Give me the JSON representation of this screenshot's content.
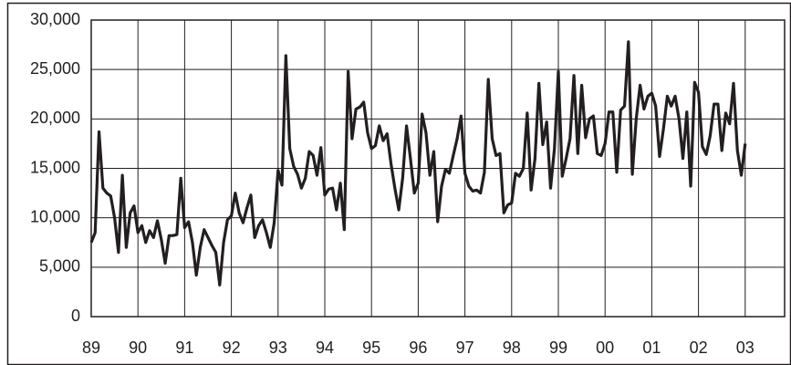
{
  "chart_data": {
    "type": "line",
    "categories": [
      "89",
      null,
      null,
      null,
      null,
      null,
      null,
      null,
      null,
      null,
      null,
      null,
      "90",
      null,
      null,
      null,
      null,
      null,
      null,
      null,
      null,
      null,
      null,
      null,
      "91",
      null,
      null,
      null,
      null,
      null,
      null,
      null,
      null,
      null,
      null,
      null,
      "92",
      null,
      null,
      null,
      null,
      null,
      null,
      null,
      null,
      null,
      null,
      null,
      "93",
      null,
      null,
      null,
      null,
      null,
      null,
      null,
      null,
      null,
      null,
      null,
      "94",
      null,
      null,
      null,
      null,
      null,
      null,
      null,
      null,
      null,
      null,
      null,
      "95",
      null,
      null,
      null,
      null,
      null,
      null,
      null,
      null,
      null,
      null,
      null,
      "96",
      null,
      null,
      null,
      null,
      null,
      null,
      null,
      null,
      null,
      null,
      null,
      "97",
      null,
      null,
      null,
      null,
      null,
      null,
      null,
      null,
      null,
      null,
      null,
      "98",
      null,
      null,
      null,
      null,
      null,
      null,
      null,
      null,
      null,
      null,
      null,
      "99",
      null,
      null,
      null,
      null,
      null,
      null,
      null,
      null,
      null,
      null,
      null,
      "00",
      null,
      null,
      null,
      null,
      null,
      null,
      null,
      null,
      null,
      null,
      null,
      "01",
      null,
      null,
      null,
      null,
      null,
      null,
      null,
      null,
      null,
      null,
      null,
      "02",
      null,
      null,
      null,
      null,
      null,
      null,
      null,
      null,
      null,
      null,
      null,
      "03"
    ],
    "values": [
      7500,
      8500,
      18700,
      13000,
      12500,
      12200,
      10000,
      6500,
      14300,
      7000,
      10500,
      11200,
      8500,
      9200,
      7500,
      8700,
      8000,
      9700,
      7800,
      5400,
      8200,
      8200,
      8300,
      14000,
      9000,
      9600,
      7500,
      4200,
      7000,
      8800,
      8000,
      7200,
      6500,
      3200,
      7500,
      9800,
      10200,
      12500,
      10500,
      9500,
      11000,
      12300,
      8000,
      9200,
      9800,
      8500,
      7000,
      9500,
      14800,
      13300,
      26400,
      17000,
      15200,
      14400,
      13000,
      14000,
      16700,
      16300,
      14300,
      17100,
      12300,
      12900,
      13000,
      10800,
      13500,
      8800,
      24800,
      18000,
      21000,
      21200,
      21700,
      18600,
      17000,
      17300,
      19300,
      17800,
      18500,
      15500,
      13000,
      10800,
      14000,
      19300,
      16000,
      12500,
      13500,
      20500,
      18600,
      14300,
      16700,
      9600,
      13200,
      14900,
      14500,
      16300,
      18000,
      20300,
      14500,
      13200,
      12700,
      12800,
      12500,
      14600,
      24000,
      18000,
      16300,
      16500,
      10500,
      11300,
      11500,
      14500,
      14200,
      15000,
      20600,
      12800,
      16000,
      23600,
      17400,
      19700,
      13000,
      17000,
      24800,
      14200,
      16000,
      18000,
      24400,
      16500,
      23400,
      18100,
      20000,
      20300,
      16500,
      16300,
      17500,
      20700,
      20700,
      14600,
      20900,
      21300,
      27800,
      14400,
      20000,
      23400,
      21000,
      22300,
      22600,
      21300,
      16200,
      19000,
      22300,
      21300,
      22300,
      20000,
      16000,
      20700,
      13200,
      23700,
      22700,
      17200,
      16400,
      18300,
      21500,
      21500,
      16800,
      20600,
      19500,
      23600,
      16800,
      14300,
      17500
    ],
    "color": "#231f20",
    "ylim": [
      0,
      30000
    ],
    "yticks": [
      0,
      {
        "value": 5000,
        "label": "5,000"
      },
      {
        "value": 10000,
        "label": "10,000"
      },
      {
        "value": 15000,
        "label": "15,000"
      },
      {
        "value": 20000,
        "label": "20,000"
      },
      {
        "value": 25000,
        "label": "25,000"
      },
      {
        "value": 30000,
        "label": "30,000"
      }
    ],
    "grid": true
  }
}
